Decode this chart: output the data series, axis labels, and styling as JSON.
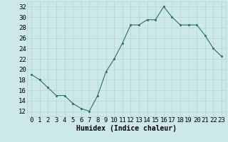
{
  "x": [
    0,
    1,
    2,
    3,
    4,
    5,
    6,
    7,
    8,
    9,
    10,
    11,
    12,
    13,
    14,
    15,
    16,
    17,
    18,
    19,
    20,
    21,
    22,
    23
  ],
  "y": [
    19,
    18,
    16.5,
    15,
    15,
    13.5,
    12.5,
    12,
    15,
    19.5,
    22,
    25,
    28.5,
    28.5,
    29.5,
    29.5,
    32,
    30,
    28.5,
    28.5,
    28.5,
    26.5,
    24,
    22.5
  ],
  "xlabel": "Humidex (Indice chaleur)",
  "xlim": [
    -0.5,
    23.5
  ],
  "ylim": [
    11,
    33
  ],
  "yticks": [
    12,
    14,
    16,
    18,
    20,
    22,
    24,
    26,
    28,
    30,
    32
  ],
  "xticks": [
    0,
    1,
    2,
    3,
    4,
    5,
    6,
    7,
    8,
    9,
    10,
    11,
    12,
    13,
    14,
    15,
    16,
    17,
    18,
    19,
    20,
    21,
    22,
    23
  ],
  "line_color": "#2d6e6e",
  "marker_color": "#2d6e6e",
  "bg_color": "#cce8e8",
  "grid_color": "#b0d4d4",
  "xlabel_fontsize": 7,
  "tick_fontsize": 6.5
}
